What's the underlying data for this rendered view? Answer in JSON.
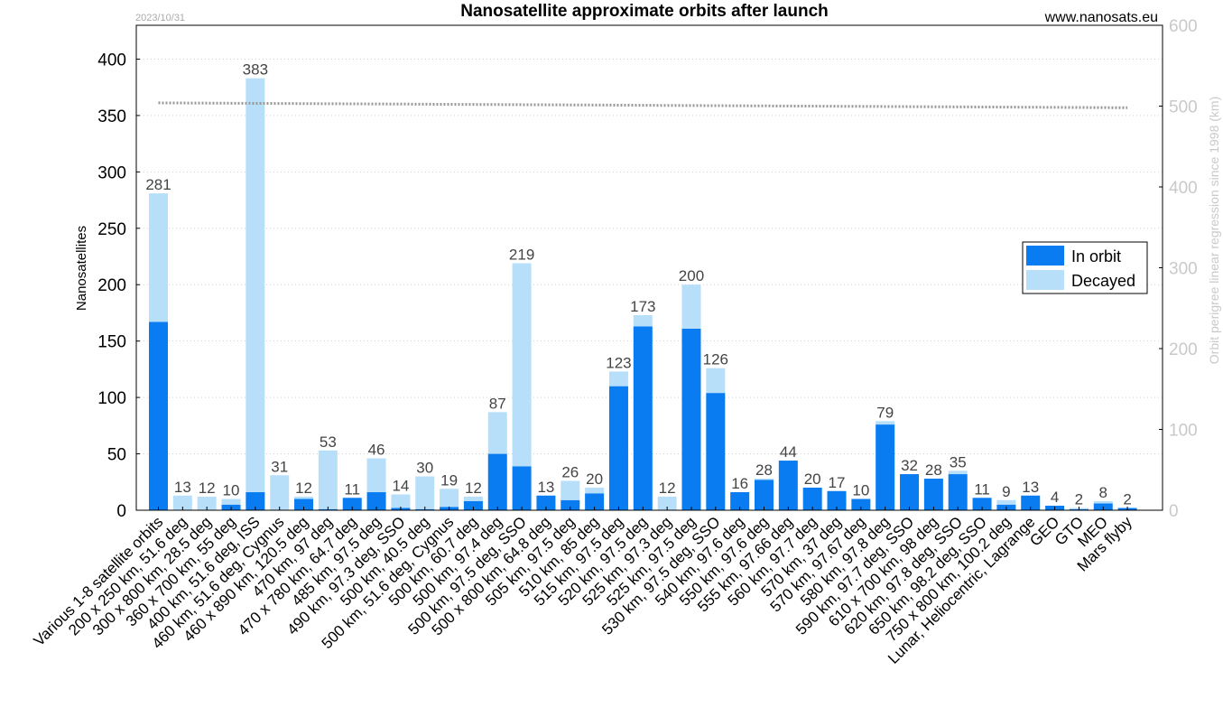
{
  "header": {
    "date": "2023/10/31",
    "title": "Nanosatellite approximate orbits after launch",
    "source": "www.nanosats.eu"
  },
  "chart_data": {
    "type": "bar",
    "stacked": true,
    "title": "Nanosatellite approximate orbits after launch",
    "ylabel": "Nanosatellites",
    "y2label": "Orbit perigree linear regression since 1998 (km)",
    "ylim": [
      0,
      430
    ],
    "y2lim": [
      0,
      600
    ],
    "yticks": [
      0,
      50,
      100,
      150,
      200,
      250,
      300,
      350,
      400
    ],
    "y2ticks": [
      0,
      100,
      200,
      300,
      400,
      500,
      600
    ],
    "grid": true,
    "legend_position": "right",
    "categories": [
      "Various 1-8 satellite orbits",
      "200 x 250 km, 51.6 deg",
      "300 x 800 km, 28.5 deg",
      "360 x 700 km, 55 deg",
      "400 km, 51.6 deg, ISS",
      "460 km, 51.6 deg, Cygnus",
      "460 x 890 km, 120.5 deg",
      "470 km, 97 deg",
      "470 x 780 km, 64.7 deg",
      "485 km, 97.5 deg",
      "490 km, 97.3 deg, SSO",
      "500 km, 40.5 deg",
      "500 km, 51.6 deg, Cygnus",
      "500 km, 60.7 deg",
      "500 km, 97.4 deg",
      "500 km, 97.5 deg, SSO",
      "500 x 800 km, 64.8 deg",
      "505 km, 97.5 deg",
      "510 km, 85 deg",
      "515 km, 97.5 deg",
      "520 km, 97.5 deg",
      "525 km, 97.3 deg",
      "525 km, 97.5 deg",
      "530 km, 97.5 deg, SSO",
      "540 km, 97.6 deg",
      "550 km, 97.6 deg",
      "555 km, 97.66 deg",
      "560 km, 97.7 deg",
      "570 km, 37 deg",
      "570 km, 97.67 deg",
      "580 km, 97.8 deg",
      "590 km, 97.7 deg, SSO",
      "610 x 700 km, 98 deg",
      "620 km, 97.8 deg, SSO",
      "650 km, 98.2 deg, SSO",
      "750 x 800 km, 100.2 deg",
      "Lunar, Heliocentric, Lagrange",
      "GEO",
      "GTO",
      "MEO",
      "Mars flyby"
    ],
    "totals": [
      281,
      13,
      12,
      10,
      383,
      31,
      12,
      53,
      11,
      46,
      14,
      30,
      19,
      12,
      87,
      219,
      13,
      26,
      20,
      123,
      173,
      12,
      200,
      126,
      16,
      28,
      44,
      20,
      17,
      10,
      79,
      32,
      28,
      35,
      11,
      9,
      13,
      4,
      2,
      8,
      2
    ],
    "series": [
      {
        "name": "In orbit",
        "color": "#0a7cf2",
        "values": [
          167,
          0,
          0,
          5,
          16,
          0,
          10,
          1,
          11,
          16,
          2,
          1,
          3,
          8,
          50,
          39,
          13,
          9,
          15,
          110,
          163,
          0,
          161,
          104,
          16,
          27,
          44,
          20,
          17,
          10,
          76,
          32,
          28,
          32,
          11,
          5,
          13,
          4,
          1,
          6,
          2
        ]
      },
      {
        "name": "Decayed",
        "color": "#b7dffa",
        "values": [
          114,
          13,
          12,
          5,
          367,
          31,
          2,
          52,
          0,
          30,
          12,
          29,
          16,
          4,
          37,
          180,
          0,
          17,
          5,
          13,
          10,
          12,
          39,
          22,
          0,
          1,
          0,
          0,
          0,
          0,
          3,
          0,
          0,
          3,
          0,
          4,
          0,
          0,
          1,
          2,
          0
        ]
      }
    ],
    "regression_line": {
      "name": "Orbit perigree linear regression since 1998",
      "color": "#999999",
      "start": 504,
      "end": 498
    }
  }
}
